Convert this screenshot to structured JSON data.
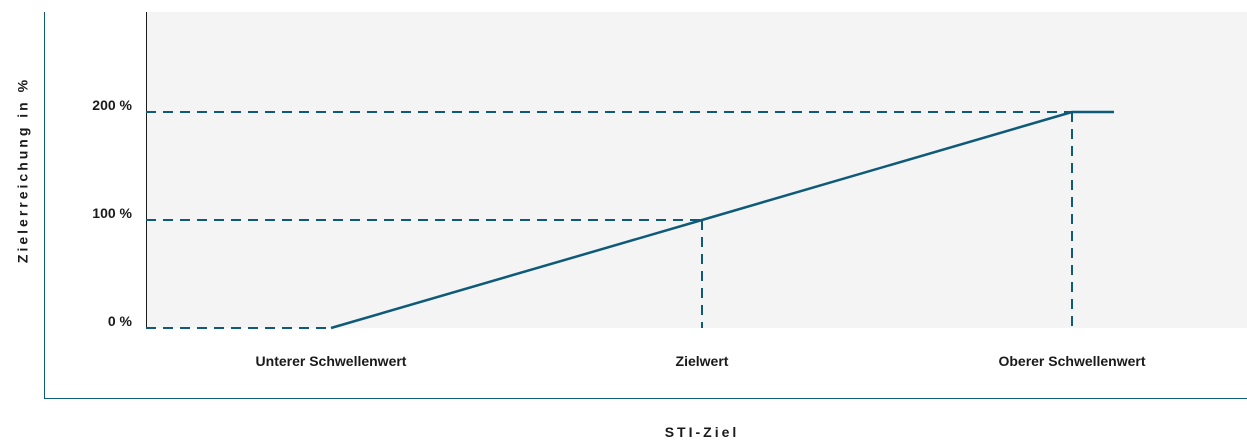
{
  "chart_data": {
    "type": "line",
    "title": "",
    "xlabel": "STI-Ziel",
    "ylabel": "Zielerreichung in %",
    "categories": [
      "Unterer Schwellenwert",
      "Zielwert",
      "Oberer Schwellenwert"
    ],
    "y_ticks": [
      "0 %",
      "100 %",
      "200 %"
    ],
    "y_tick_values": [
      0,
      100,
      200
    ],
    "ylim": [
      0,
      200
    ],
    "series": [
      {
        "points": [
          {
            "x": "Unterer Schwellenwert",
            "y": 0
          },
          {
            "x": "Zielwert",
            "y": 100
          },
          {
            "x": "Oberer Schwellenwert",
            "y": 200
          }
        ],
        "cap_after_upper": 200,
        "flat_before_lower": 0
      }
    ],
    "grid": false,
    "reference_lines": "dashed",
    "colors": {
      "line": "#0e5a78",
      "dashed": "#0e5a78",
      "plot_background": "#f4f4f4",
      "frame": "#0e5a78",
      "text": "#1a1a1a"
    }
  }
}
